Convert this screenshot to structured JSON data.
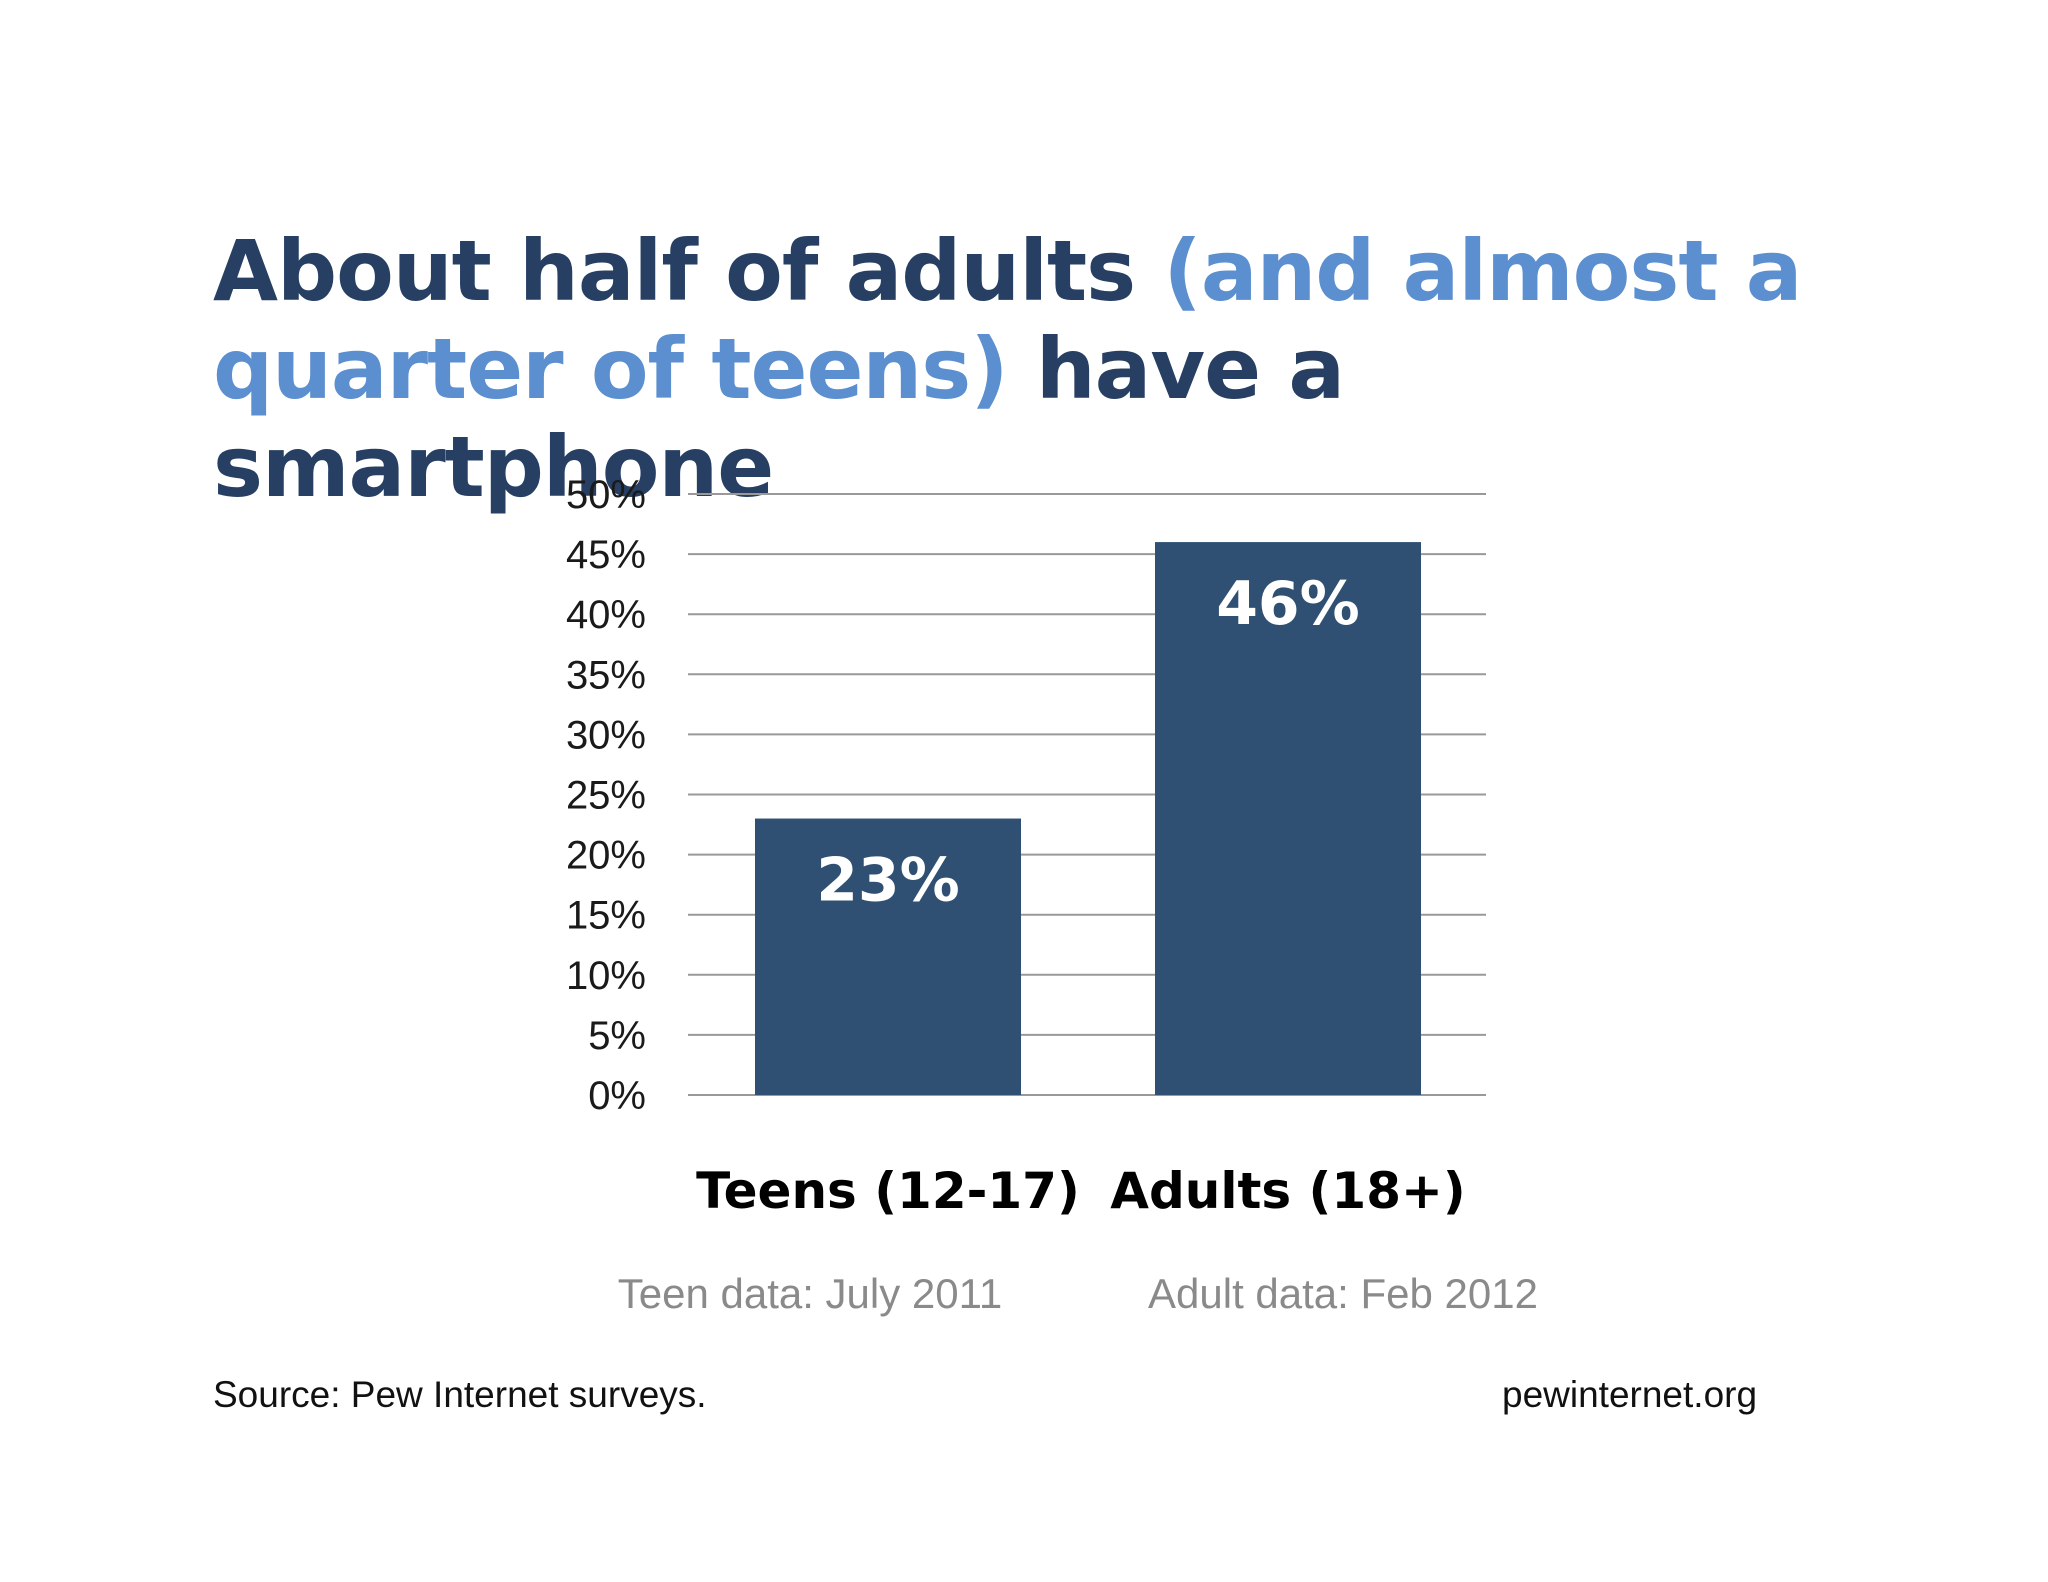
{
  "title": {
    "part1": "About half of adults ",
    "part2": "(and almost a quarter of teens)",
    "part3": " have a smartphone"
  },
  "colors": {
    "title_dark": "#263f63",
    "title_highlight": "#5b8fd0",
    "bar": "#2f5072",
    "grid": "#999999",
    "note": "#8a8a8a"
  },
  "chart_data": {
    "type": "bar",
    "categories": [
      "Teens (12-17)",
      "Adults (18+)"
    ],
    "values": [
      23,
      46
    ],
    "value_labels": [
      "23%",
      "46%"
    ],
    "notes": [
      "Teen data: July 2011",
      "Adult data: Feb 2012"
    ],
    "ylim": [
      0,
      50
    ],
    "yticks": [
      0,
      5,
      10,
      15,
      20,
      25,
      30,
      35,
      40,
      45,
      50
    ],
    "ytick_labels": [
      "0%",
      "5%",
      "10%",
      "15%",
      "20%",
      "25%",
      "30%",
      "35%",
      "40%",
      "45%",
      "50%"
    ],
    "grid": true,
    "legend": "none"
  },
  "footer": {
    "source": "Source: Pew Internet surveys.",
    "site": "pewinternet.org"
  }
}
